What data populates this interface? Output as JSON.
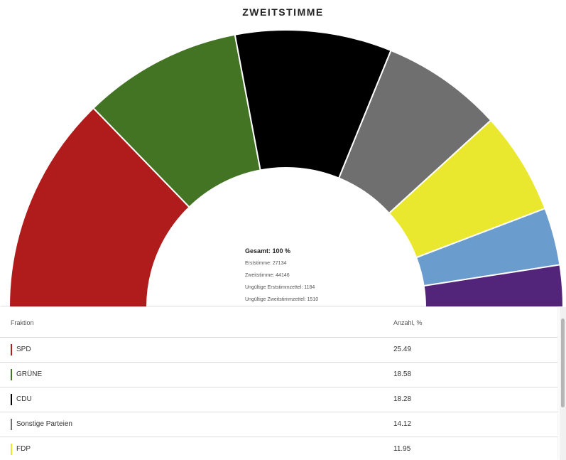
{
  "chart_data": {
    "type": "pie",
    "title": "ZWEITSTIMME",
    "slices": [
      {
        "label": "SPD",
        "value": 25.49,
        "color": "#b01c1c"
      },
      {
        "label": "GRÜNE",
        "value": 18.58,
        "color": "#437424"
      },
      {
        "label": "CDU",
        "value": 18.28,
        "color": "#000000"
      },
      {
        "label": "Sonstige Parteien",
        "value": 14.12,
        "color": "#6f6f6f"
      },
      {
        "label": "FDP",
        "value": 11.95,
        "color": "#eae82e"
      },
      {
        "label": "",
        "value": 6.7,
        "color": "#6a9ccd"
      },
      {
        "label": "",
        "value": 4.88,
        "color": "#53257a"
      }
    ],
    "center": {
      "total": "Gesamt: 100 %",
      "lines": [
        "Erststimme: 27134",
        "Zweitstimme: 44146",
        "Ungültige Erststimmzettel: 1184",
        "Ungültige Zweitstimmzettel: 1510"
      ]
    }
  },
  "table": {
    "headers": {
      "fraktion": "Fraktion",
      "anzahl": "Anzahl, %"
    },
    "rows": [
      {
        "name": "SPD",
        "value": "25.49",
        "color": "#b01c1c"
      },
      {
        "name": "GRÜNE",
        "value": "18.58",
        "color": "#437424"
      },
      {
        "name": "CDU",
        "value": "18.28",
        "color": "#000000"
      },
      {
        "name": "Sonstige Parteien",
        "value": "14.12",
        "color": "#6f6f6f"
      },
      {
        "name": "FDP",
        "value": "11.95",
        "color": "#eae82e"
      }
    ]
  }
}
